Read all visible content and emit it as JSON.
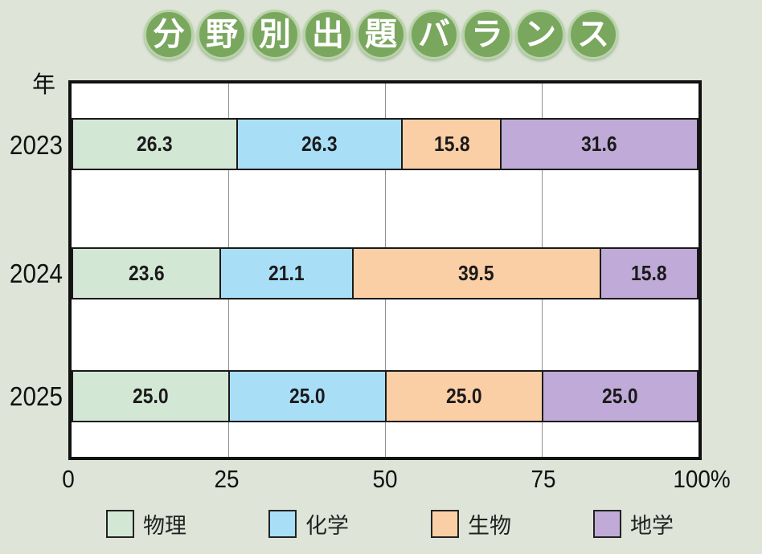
{
  "title": {
    "text": "分野別出題バランス",
    "chars": [
      "分",
      "野",
      "別",
      "出",
      "題",
      "バ",
      "ラ",
      "ン",
      "ス"
    ],
    "circle_color": "#7aa75e",
    "ring_color": "#b9d3a8",
    "text_color": "#ffffff"
  },
  "axis": {
    "y_unit": "年",
    "x_tick_labels": [
      "0",
      "25",
      "50",
      "75",
      "100%"
    ],
    "x_tick_values": [
      0,
      25,
      50,
      75,
      100
    ]
  },
  "chart_data": {
    "type": "bar",
    "orientation": "horizontal-stacked",
    "title": "分野別出題バランス",
    "ylabel": "年",
    "xlabel": "",
    "xlim": [
      0,
      100
    ],
    "grid": "vertical",
    "legend_position": "bottom",
    "categories": [
      "2023",
      "2024",
      "2025"
    ],
    "series": [
      {
        "name": "物理",
        "color": "#d3e7d5",
        "values": [
          26.3,
          23.6,
          25.0
        ],
        "labels": [
          "26.3",
          "23.6",
          "25.0"
        ]
      },
      {
        "name": "化学",
        "color": "#a9def7",
        "values": [
          26.3,
          21.1,
          25.0
        ],
        "labels": [
          "26.3",
          "21.1",
          "25.0"
        ]
      },
      {
        "name": "生物",
        "color": "#fbcfa5",
        "values": [
          15.8,
          39.5,
          25.0
        ],
        "labels": [
          "15.8",
          "39.5",
          "25.0"
        ]
      },
      {
        "name": "地学",
        "color": "#c0aad7",
        "values": [
          31.6,
          15.8,
          25.0
        ],
        "labels": [
          "31.6",
          "15.8",
          "25.0"
        ]
      }
    ]
  },
  "colors": {
    "background": "#dee5d8",
    "plot_background": "#ffffff",
    "plot_border": "#111111",
    "gridline": "#8f8f8f",
    "bar_border": "#1a1a1a"
  }
}
